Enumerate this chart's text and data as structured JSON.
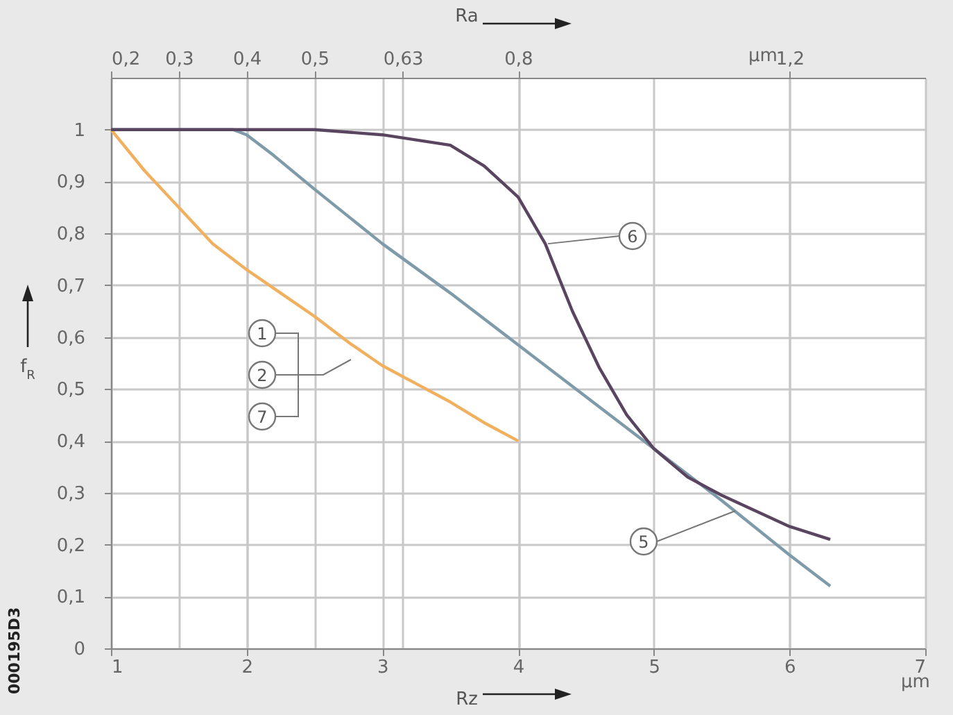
{
  "chart_data": {
    "type": "line",
    "xlabel": "Rz",
    "x2label": "Ra",
    "ylabel": "f$_{R}$",
    "xlim": [
      1,
      7
    ],
    "xticks": [
      1,
      2,
      3,
      4,
      5,
      6,
      7
    ],
    "x2lim": [
      0.2,
      1.4
    ],
    "x2ticks": [
      {
        "value": 0.2,
        "label": "0,2"
      },
      {
        "value": 0.3,
        "label": "0,3"
      },
      {
        "value": 0.4,
        "label": "0,4"
      },
      {
        "value": 0.5,
        "label": "0,5"
      },
      {
        "value": 0.63,
        "label": "0,63"
      },
      {
        "value": 0.8,
        "label": "0,8"
      },
      {
        "value": 1.2,
        "label": "1,2"
      }
    ],
    "ylim": [
      0,
      1.1
    ],
    "yticks": [
      0,
      {
        "value": 0.1,
        "label": "0,1"
      },
      {
        "value": 0.2,
        "label": "0,2"
      },
      {
        "value": 0.3,
        "label": "0,3"
      },
      {
        "value": 0.4,
        "label": "0,4"
      },
      {
        "value": 0.5,
        "label": "0,5"
      },
      {
        "value": 0.6,
        "label": "0,6"
      },
      {
        "value": 0.7,
        "label": "0,7"
      },
      {
        "value": 0.8,
        "label": "0,8"
      },
      {
        "value": 0.9,
        "label": "0,9"
      },
      1
    ],
    "grid": true,
    "marker": "none",
    "line_style": "solid",
    "series": [
      {
        "color": "#f0b060",
        "x": [
          1,
          1.25,
          1.5,
          1.75,
          2,
          2.25,
          2.5,
          2.75,
          3,
          3.25,
          3.5,
          3.75,
          4
        ],
        "values": [
          1,
          0.92,
          0.85,
          0.78,
          0.73,
          0.685,
          0.64,
          0.59,
          0.545,
          0.51,
          0.475,
          0.435,
          0.4
        ]
      },
      {
        "color": "#7f9aa8",
        "x": [
          1,
          1.5,
          1.9,
          2,
          2.2,
          2.5,
          3,
          3.5,
          4,
          4.5,
          5,
          5.5,
          6,
          6.3
        ],
        "values": [
          1,
          1,
          1,
          0.99,
          0.95,
          0.885,
          0.78,
          0.685,
          0.585,
          0.485,
          0.385,
          0.285,
          0.18,
          0.12
        ]
      },
      {
        "color": "#5a4560",
        "x": [
          1,
          2,
          2.5,
          3,
          3.5,
          3.75,
          4,
          4.2,
          4.4,
          4.6,
          4.8,
          5,
          5.25,
          5.5,
          5.75,
          6,
          6.3
        ],
        "values": [
          1,
          1,
          1,
          0.99,
          0.97,
          0.93,
          0.87,
          0.78,
          0.65,
          0.54,
          0.45,
          0.385,
          0.33,
          0.295,
          0.265,
          0.235,
          0.21
        ]
      }
    ],
    "annotations": [
      "µm",
      "µm",
      "000195D3",
      "1",
      "2",
      "7",
      {
        "text": "6",
        "x": 4.22,
        "y": 0.78
      },
      {
        "text": "5",
        "x": 5.6,
        "y": 0.265
      }
    ]
  }
}
